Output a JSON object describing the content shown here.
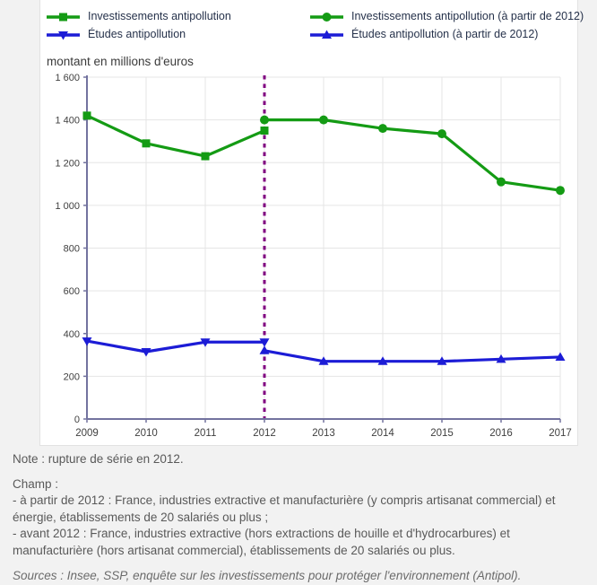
{
  "colors": {
    "background": "#f2f2f2",
    "panel": "#ffffff",
    "grid": "#e5e5e5",
    "axis": "#73739f",
    "green": "#149b14",
    "blue": "#1c1cd6",
    "break_line": "#800080",
    "legend_text": "#26324b",
    "tick_text": "#3f3f3f",
    "notes_text": "#595959"
  },
  "legend": {
    "items": [
      {
        "label": "Investissements antipollution",
        "marker": "square",
        "color": "#149b14"
      },
      {
        "label": "Études antipollution",
        "marker": "triangle-down",
        "color": "#1c1cd6"
      },
      {
        "label": "Investissements antipollution (à partir de 2012)",
        "marker": "circle",
        "color": "#149b14"
      },
      {
        "label": "Études antipollution (à partir de 2012)",
        "marker": "triangle-up",
        "color": "#1c1cd6"
      }
    ]
  },
  "chart_data": {
    "type": "line",
    "title": "montant en millions d'euros",
    "xlabel": "",
    "ylabel": "montant en millions d'euros",
    "x": [
      2009,
      2010,
      2011,
      2012,
      2013,
      2014,
      2015,
      2016,
      2017
    ],
    "ylim": [
      0,
      1600
    ],
    "ytick_step": 200,
    "ytick_labels": [
      "0",
      "200",
      "400",
      "600",
      "800",
      "1 000",
      "1 200",
      "1 400",
      "1 600"
    ],
    "grid": true,
    "legend_position": "top",
    "series": [
      {
        "id": "investissements-avant-2012",
        "name": "Investissements antipollution",
        "color": "#149b14",
        "marker": "square",
        "x": [
          2009,
          2010,
          2011,
          2012
        ],
        "values": [
          1420,
          1290,
          1230,
          1350
        ]
      },
      {
        "id": "investissements-apres-2012",
        "name": "Investissements antipollution (à partir de 2012)",
        "color": "#149b14",
        "marker": "circle",
        "x": [
          2012,
          2013,
          2014,
          2015,
          2016,
          2017
        ],
        "values": [
          1400,
          1400,
          1360,
          1335,
          1110,
          1070
        ]
      },
      {
        "id": "etudes-avant-2012",
        "name": "Études antipollution",
        "color": "#1c1cd6",
        "marker": "triangle-down",
        "x": [
          2009,
          2010,
          2011,
          2012
        ],
        "values": [
          365,
          315,
          360,
          360
        ]
      },
      {
        "id": "etudes-apres-2012",
        "name": "Études antipollution (à partir de 2012)",
        "color": "#1c1cd6",
        "marker": "triangle-up",
        "x": [
          2012,
          2013,
          2014,
          2015,
          2016,
          2017
        ],
        "values": [
          320,
          270,
          270,
          270,
          280,
          290
        ]
      }
    ],
    "annotations": [
      {
        "type": "vline",
        "x": 2012,
        "style": "dashed",
        "color": "#800080",
        "meaning": "rupture de série"
      }
    ]
  },
  "notes": {
    "note": "Note : rupture de série en 2012.",
    "champ_title": "Champ :",
    "champ_line1": "- à partir de 2012 : France, industries extractive et manufacturière (y compris artisanat commercial) et énergie, établissements de 20 salariés ou plus ;",
    "champ_line2": "- avant 2012 : France, industries extractive (hors extractions de houille et d'hydrocarbures) et manufacturière (hors artisanat commercial), établissements de 20 salariés ou plus.",
    "sources": "Sources : Insee, SSP, enquête sur les investissements pour protéger l'environnement (Antipol)."
  }
}
